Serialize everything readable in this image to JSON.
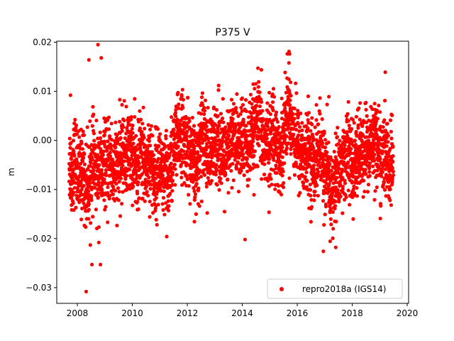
{
  "chart_data": {
    "type": "scatter",
    "title": "P375 V",
    "xlabel": "",
    "ylabel": "m",
    "xlim": [
      2007.25,
      2020.05
    ],
    "ylim": [
      -0.0332,
      0.0202
    ],
    "xticks": [
      2008,
      2010,
      2012,
      2014,
      2016,
      2018,
      2020
    ],
    "xtick_labels": [
      "2008",
      "2010",
      "2012",
      "2014",
      "2016",
      "2018",
      "2020"
    ],
    "yticks": [
      -0.03,
      -0.02,
      -0.01,
      0.0,
      0.01,
      0.02
    ],
    "ytick_labels": [
      "−0.03",
      "−0.02",
      "−0.01",
      "0.00",
      "0.01",
      "0.02"
    ],
    "grid": false,
    "legend_position": "lower-right",
    "series": [
      {
        "name": "repro2018a (IGS14)",
        "color": "#ff0000",
        "x": [
          2007.7,
          2007.8,
          2007.9,
          2008.0,
          2008.1,
          2008.2,
          2008.3,
          2008.4,
          2008.5,
          2008.6,
          2008.7,
          2008.8,
          2008.9,
          2009.0,
          2009.1,
          2009.2,
          2009.3,
          2009.4,
          2009.5,
          2009.6,
          2009.7,
          2009.8,
          2009.9,
          2010.0,
          2010.1,
          2010.2,
          2010.3,
          2010.4,
          2010.5,
          2010.6,
          2010.7,
          2010.8,
          2010.9,
          2011.0,
          2011.1,
          2011.2,
          2011.3,
          2011.4,
          2011.5,
          2011.6,
          2011.7,
          2011.8,
          2011.9,
          2012.0,
          2012.1,
          2012.2,
          2012.3,
          2012.4,
          2012.5,
          2012.6,
          2012.7,
          2012.8,
          2012.9,
          2013.0,
          2013.1,
          2013.2,
          2013.3,
          2013.4,
          2013.5,
          2013.6,
          2013.7,
          2013.8,
          2013.9,
          2014.0,
          2014.1,
          2014.2,
          2014.3,
          2014.4,
          2014.5,
          2014.6,
          2014.7,
          2014.8,
          2014.9,
          2015.0,
          2015.1,
          2015.2,
          2015.3,
          2015.4,
          2015.5,
          2015.6,
          2015.7,
          2015.8,
          2015.9,
          2016.0,
          2016.1,
          2016.2,
          2016.3,
          2016.4,
          2016.5,
          2016.6,
          2016.7,
          2016.8,
          2016.9,
          2017.0,
          2017.1,
          2017.2,
          2017.3,
          2017.4,
          2017.5,
          2017.6,
          2017.7,
          2017.8,
          2017.9,
          2018.0,
          2018.1,
          2018.2,
          2018.3,
          2018.4,
          2018.5,
          2018.6,
          2018.7,
          2018.8,
          2018.9,
          2019.0,
          2019.1,
          2019.2,
          2019.3,
          2019.4,
          2019.5
        ],
        "y": [
          -0.004,
          -0.007,
          -0.003,
          -0.006,
          -0.008,
          -0.005,
          -0.01,
          -0.009,
          -0.006,
          -0.004,
          -0.008,
          -0.005,
          -0.007,
          -0.004,
          -0.006,
          -0.003,
          -0.007,
          -0.005,
          -0.006,
          -0.003,
          -0.002,
          -0.004,
          -0.001,
          -0.003,
          -0.005,
          -0.006,
          -0.002,
          -0.004,
          -0.006,
          -0.003,
          -0.005,
          -0.008,
          -0.006,
          -0.004,
          -0.009,
          -0.007,
          -0.008,
          -0.005,
          -0.002,
          -0.001,
          0.001,
          0.002,
          -0.001,
          0.0,
          -0.003,
          -0.005,
          -0.006,
          -0.004,
          0.001,
          0.003,
          -0.002,
          -0.004,
          -0.003,
          -0.001,
          0.001,
          -0.001,
          -0.003,
          -0.005,
          -0.002,
          0.0,
          0.002,
          -0.001,
          -0.002,
          0.001,
          0.0,
          -0.002,
          -0.001,
          0.001,
          0.003,
          0.004,
          0.001,
          -0.001,
          0.0,
          -0.001,
          0.002,
          0.001,
          -0.002,
          -0.004,
          0.002,
          0.005,
          0.007,
          0.004,
          0.001,
          -0.001,
          -0.002,
          -0.003,
          -0.004,
          -0.002,
          -0.004,
          -0.005,
          -0.003,
          -0.002,
          -0.004,
          -0.006,
          -0.008,
          -0.01,
          -0.011,
          -0.008,
          -0.005,
          -0.006,
          -0.004,
          -0.002,
          -0.003,
          -0.006,
          -0.005,
          -0.003,
          -0.002,
          -0.004,
          -0.001,
          -0.003,
          0.0,
          0.001,
          -0.001,
          -0.003,
          -0.004,
          -0.002,
          -0.005,
          -0.006,
          -0.004
        ],
        "outliers_x": [
          2007.75,
          2008.32,
          2008.42,
          2008.53,
          2008.75,
          2008.78,
          2008.84,
          2008.87,
          2011.25,
          2014.1,
          2015.7,
          2015.72,
          2016.95,
          2017.4,
          2017.15
        ],
        "outliers_y": [
          0.0092,
          -0.0308,
          0.0164,
          -0.0253,
          0.0195,
          -0.0208,
          -0.0253,
          0.0168,
          -0.0196,
          -0.0202,
          0.0181,
          0.0176,
          -0.0226,
          -0.0218,
          0.0089
        ]
      }
    ]
  }
}
